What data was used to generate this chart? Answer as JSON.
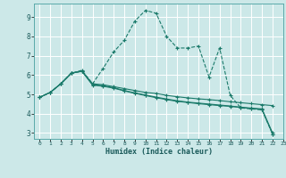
{
  "xlabel": "Humidex (Indice chaleur)",
  "background_color": "#cce8e8",
  "grid_color": "#ffffff",
  "line_color": "#1a7a6a",
  "xlim": [
    -0.5,
    23
  ],
  "ylim": [
    2.7,
    9.7
  ],
  "yticks": [
    3,
    4,
    5,
    6,
    7,
    8,
    9
  ],
  "xticks": [
    0,
    1,
    2,
    3,
    4,
    5,
    6,
    7,
    8,
    9,
    10,
    11,
    12,
    13,
    14,
    15,
    16,
    17,
    18,
    19,
    20,
    21,
    22,
    23
  ],
  "series": [
    {
      "x": [
        0,
        1,
        2,
        3,
        4,
        5,
        6,
        7,
        8,
        9,
        10,
        11,
        12,
        13,
        14,
        15,
        16,
        17,
        18,
        19,
        20,
        21,
        22
      ],
      "y": [
        4.85,
        5.1,
        5.55,
        6.1,
        6.25,
        5.55,
        6.35,
        7.2,
        7.8,
        8.8,
        9.35,
        9.2,
        8.0,
        7.4,
        7.4,
        7.5,
        5.9,
        7.4,
        4.95,
        4.3,
        4.25,
        4.2,
        2.95
      ],
      "linestyle": "--",
      "marker": "+"
    },
    {
      "x": [
        0,
        1,
        2,
        3,
        4,
        5,
        6,
        7,
        8,
        9,
        10,
        11,
        12,
        13,
        14,
        15,
        16,
        17,
        18,
        19,
        20,
        21,
        22
      ],
      "y": [
        4.85,
        5.1,
        5.55,
        6.1,
        6.2,
        5.55,
        5.5,
        5.4,
        5.3,
        5.2,
        5.1,
        5.05,
        4.95,
        4.88,
        4.82,
        4.77,
        4.73,
        4.68,
        4.62,
        4.57,
        4.52,
        4.47,
        4.42
      ],
      "linestyle": "-",
      "marker": "+"
    },
    {
      "x": [
        0,
        1,
        2,
        3,
        4,
        5,
        6,
        7,
        8,
        9,
        10,
        11,
        12,
        13,
        14,
        15,
        16,
        17,
        18,
        19,
        20,
        21,
        22
      ],
      "y": [
        4.85,
        5.1,
        5.55,
        6.1,
        6.2,
        5.5,
        5.45,
        5.35,
        5.2,
        5.08,
        4.97,
        4.86,
        4.76,
        4.67,
        4.6,
        4.55,
        4.5,
        4.45,
        4.4,
        4.34,
        4.29,
        4.25,
        3.0
      ],
      "linestyle": "-",
      "marker": "+"
    },
    {
      "x": [
        0,
        1,
        2,
        3,
        4,
        5,
        6,
        7,
        8,
        9,
        10,
        11,
        12,
        13,
        14,
        15,
        16,
        17,
        18,
        19,
        20,
        21,
        22
      ],
      "y": [
        4.85,
        5.1,
        5.55,
        6.1,
        6.2,
        5.48,
        5.42,
        5.32,
        5.18,
        5.05,
        4.94,
        4.83,
        4.73,
        4.64,
        4.58,
        4.52,
        4.47,
        4.42,
        4.38,
        4.32,
        4.27,
        4.22,
        2.95
      ],
      "linestyle": "-",
      "marker": "+"
    }
  ]
}
